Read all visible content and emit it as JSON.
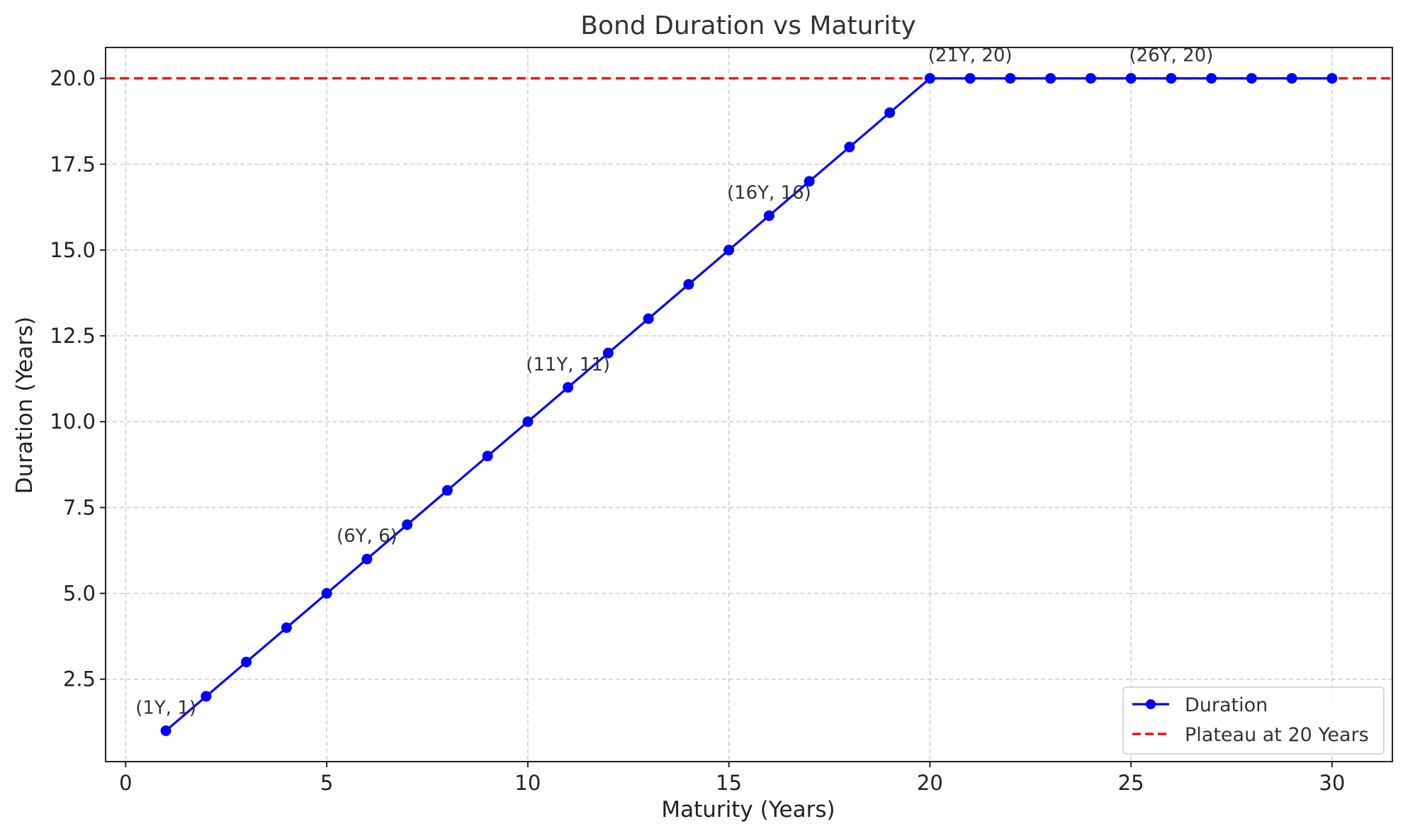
{
  "chart_data": {
    "type": "line",
    "title": "Bond Duration vs Maturity",
    "xlabel": "Maturity (Years)",
    "ylabel": "Duration (Years)",
    "xlim": [
      -0.5,
      31.5
    ],
    "ylim": [
      0.1,
      20.9
    ],
    "xticks": [
      0,
      5,
      10,
      15,
      20,
      25,
      30
    ],
    "yticks": [
      2.5,
      5.0,
      7.5,
      10.0,
      12.5,
      15.0,
      17.5,
      20.0
    ],
    "ytick_labels": [
      "2.5",
      "5.0",
      "7.5",
      "10.0",
      "12.5",
      "15.0",
      "17.5",
      "20.0"
    ],
    "grid": true,
    "legend_position": "bottom-right",
    "series": [
      {
        "name": "Duration",
        "color": "#0000ff",
        "marker": "circle",
        "x": [
          1,
          2,
          3,
          4,
          5,
          6,
          7,
          8,
          9,
          10,
          11,
          12,
          13,
          14,
          15,
          16,
          17,
          18,
          19,
          20,
          21,
          22,
          23,
          24,
          25,
          26,
          27,
          28,
          29,
          30
        ],
        "y": [
          1,
          2,
          3,
          4,
          5,
          6,
          7,
          8,
          9,
          10,
          11,
          12,
          13,
          14,
          15,
          16,
          17,
          18,
          19,
          20,
          20,
          20,
          20,
          20,
          20,
          20,
          20,
          20,
          20,
          20
        ]
      }
    ],
    "reference_lines": [
      {
        "name": "Plateau at 20 Years",
        "y": 20,
        "color": "#ff0000",
        "style": "dashed"
      }
    ],
    "annotations": [
      {
        "text": "(1Y, 1)",
        "x": 1,
        "y": 1
      },
      {
        "text": "(6Y, 6)",
        "x": 6,
        "y": 6
      },
      {
        "text": "(11Y, 11)",
        "x": 11,
        "y": 11
      },
      {
        "text": "(16Y, 16)",
        "x": 16,
        "y": 16
      },
      {
        "text": "(21Y, 20)",
        "x": 21,
        "y": 20
      },
      {
        "text": "(26Y, 20)",
        "x": 26,
        "y": 20
      }
    ]
  }
}
